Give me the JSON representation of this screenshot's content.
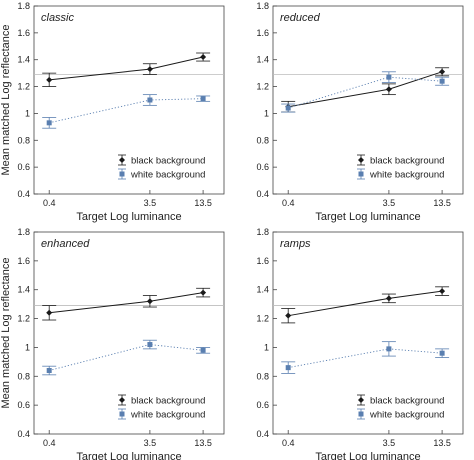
{
  "colors": {
    "black_series": "#1a1a1a",
    "white_series": "#5a7fb0",
    "reference_line": "#bdbdbd",
    "frame": "#444444"
  },
  "chart_data": [
    {
      "type": "line",
      "title": "classic",
      "xlabel": "Target Log luminance",
      "ylabel": "Mean matched Log reflectance",
      "x_categories": [
        "0.4",
        "3.5",
        "13.5"
      ],
      "ylim": [
        0.4,
        1.8
      ],
      "yticks": [
        "0.4",
        "0.6",
        "0.8",
        "1",
        "1.2",
        "1.4",
        "1.6",
        "1.8"
      ],
      "reference_y": 1.29,
      "legend": "bottom-right",
      "series": [
        {
          "name": "black background",
          "marker": "diamond",
          "style": "solid",
          "values": [
            1.25,
            1.33,
            1.42
          ],
          "errors": [
            0.05,
            0.04,
            0.03
          ]
        },
        {
          "name": "white background",
          "marker": "square",
          "style": "dotted",
          "values": [
            0.93,
            1.1,
            1.11
          ],
          "errors": [
            0.04,
            0.04,
            0.02
          ]
        }
      ]
    },
    {
      "type": "line",
      "title": "reduced",
      "xlabel": "Target Log luminance",
      "ylabel": "",
      "x_categories": [
        "0.4",
        "3.5",
        "13.5"
      ],
      "ylim": [
        0.4,
        1.8
      ],
      "yticks": [
        "0.4",
        "0.6",
        "0.8",
        "1",
        "1.2",
        "1.4",
        "1.6",
        "1.8"
      ],
      "reference_y": 1.29,
      "legend": "bottom-right",
      "series": [
        {
          "name": "black background",
          "marker": "diamond",
          "style": "solid",
          "values": [
            1.05,
            1.18,
            1.31
          ],
          "errors": [
            0.04,
            0.04,
            0.03
          ]
        },
        {
          "name": "white background",
          "marker": "square",
          "style": "dotted",
          "values": [
            1.04,
            1.27,
            1.24
          ],
          "errors": [
            0.03,
            0.04,
            0.03
          ]
        }
      ]
    },
    {
      "type": "line",
      "title": "enhanced",
      "xlabel": "Target Log luminance",
      "ylabel": "Mean matched Log reflectance",
      "x_categories": [
        "0.4",
        "3.5",
        "13.5"
      ],
      "ylim": [
        0.4,
        1.8
      ],
      "yticks": [
        "0.4",
        "0.6",
        "0.8",
        "1",
        "1.2",
        "1.4",
        "1.6",
        "1.8"
      ],
      "reference_y": 1.29,
      "legend": "bottom-right",
      "series": [
        {
          "name": "black background",
          "marker": "diamond",
          "style": "solid",
          "values": [
            1.24,
            1.32,
            1.38
          ],
          "errors": [
            0.05,
            0.04,
            0.03
          ]
        },
        {
          "name": "white background",
          "marker": "square",
          "style": "dotted",
          "values": [
            0.84,
            1.02,
            0.98
          ],
          "errors": [
            0.03,
            0.03,
            0.02
          ]
        }
      ]
    },
    {
      "type": "line",
      "title": "ramps",
      "xlabel": "Target Log luminance",
      "ylabel": "",
      "x_categories": [
        "0.4",
        "3.5",
        "13.5"
      ],
      "ylim": [
        0.4,
        1.8
      ],
      "yticks": [
        "0.4",
        "0.6",
        "0.8",
        "1",
        "1.2",
        "1.4",
        "1.6",
        "1.8"
      ],
      "reference_y": 1.29,
      "legend": "bottom-right",
      "series": [
        {
          "name": "black background",
          "marker": "diamond",
          "style": "solid",
          "values": [
            1.22,
            1.34,
            1.39
          ],
          "errors": [
            0.05,
            0.03,
            0.03
          ]
        },
        {
          "name": "white background",
          "marker": "square",
          "style": "dotted",
          "values": [
            0.86,
            0.99,
            0.96
          ],
          "errors": [
            0.04,
            0.05,
            0.03
          ]
        }
      ]
    }
  ]
}
